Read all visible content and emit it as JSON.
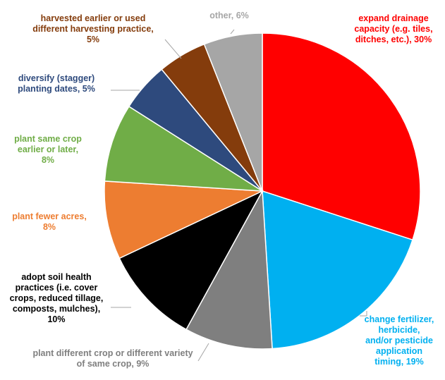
{
  "chart_data": {
    "type": "pie",
    "title": "",
    "unit": "%",
    "slices": [
      {
        "label_lines": [
          "expand drainage",
          "capacity (e.g. tiles,",
          "ditches, etc.), 30%"
        ],
        "value": 30,
        "color": "#ff0000",
        "label_color": "#ff0000"
      },
      {
        "label_lines": [
          "change fertilizer,",
          "herbicide,",
          "and/or pesticide",
          "application",
          "timing, 19%"
        ],
        "value": 19,
        "color": "#00b0f0",
        "label_color": "#00b0f0"
      },
      {
        "label_lines": [
          "plant different crop or different variety",
          "of same crop, 9%"
        ],
        "value": 9,
        "color": "#7f7f7f",
        "label_color": "#7f7f7f"
      },
      {
        "label_lines": [
          "adopt soil health",
          "practices (i.e. cover",
          "crops, reduced tillage,",
          "composts, mulches),",
          "10%"
        ],
        "value": 10,
        "color": "#000000",
        "label_color": "#000000"
      },
      {
        "label_lines": [
          "plant fewer acres,",
          "8%"
        ],
        "value": 8,
        "color": "#ed7d31",
        "label_color": "#ed7d31"
      },
      {
        "label_lines": [
          "plant same crop",
          "earlier or later,",
          "8%"
        ],
        "value": 8,
        "color": "#70ad47",
        "label_color": "#70ad47"
      },
      {
        "label_lines": [
          "diversify (stagger)",
          "planting dates, 5%"
        ],
        "value": 5,
        "color": "#2e4a7d",
        "label_color": "#2e4a7d"
      },
      {
        "label_lines": [
          "harvested earlier or used",
          "different harvesting practice,",
          "5%"
        ],
        "value": 5,
        "color": "#843c0c",
        "label_color": "#843c0c"
      },
      {
        "label_lines": [
          "other, 6%"
        ],
        "value": 6,
        "color": "#a6a6a6",
        "label_color": "#a6a6a6"
      }
    ]
  }
}
